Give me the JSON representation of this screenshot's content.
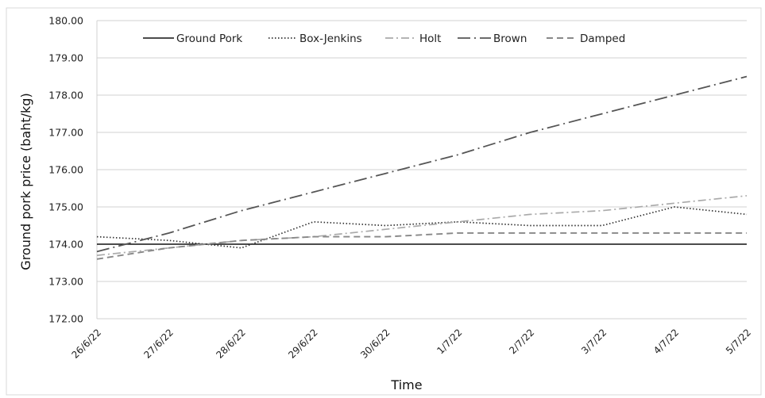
{
  "chart_data": {
    "type": "line",
    "title": "",
    "xlabel": "Time",
    "ylabel": "Ground pork price (baht/kg)",
    "ylim": [
      172,
      180
    ],
    "yticks": [
      "172.00",
      "173.00",
      "174.00",
      "175.00",
      "176.00",
      "177.00",
      "178.00",
      "179.00",
      "180.00"
    ],
    "categories": [
      "26/6/22",
      "27/6/22",
      "28/6/22",
      "29/6/22",
      "30/6/22",
      "1/7/22",
      "2/7/22",
      "3/7/22",
      "4/7/22",
      "5/7/22"
    ],
    "grid": "horizontal",
    "legend_position": "top",
    "series": [
      {
        "name": "Ground Pork",
        "values": [
          174.0,
          174.0,
          174.0,
          174.0,
          174.0,
          174.0,
          174.0,
          174.0,
          174.0,
          174.0
        ],
        "color": "#111111",
        "dash": "solid"
      },
      {
        "name": "Box-Jenkins",
        "values": [
          174.2,
          174.1,
          173.9,
          174.6,
          174.5,
          174.6,
          174.5,
          174.5,
          175.0,
          174.8
        ],
        "color": "#333333",
        "dash": "dotted"
      },
      {
        "name": "Holt",
        "values": [
          173.7,
          173.9,
          174.1,
          174.2,
          174.4,
          174.6,
          174.8,
          174.9,
          175.1,
          175.3
        ],
        "color": "#aaaaaa",
        "dash": "dashdot"
      },
      {
        "name": "Brown",
        "values": [
          173.8,
          174.3,
          174.9,
          175.4,
          175.9,
          176.4,
          177.0,
          177.5,
          178.0,
          178.5
        ],
        "color": "#555555",
        "dash": "longdashdot"
      },
      {
        "name": "Damped",
        "values": [
          173.6,
          173.9,
          174.1,
          174.2,
          174.2,
          174.3,
          174.3,
          174.3,
          174.3,
          174.3
        ],
        "color": "#888888",
        "dash": "dashed"
      }
    ]
  }
}
